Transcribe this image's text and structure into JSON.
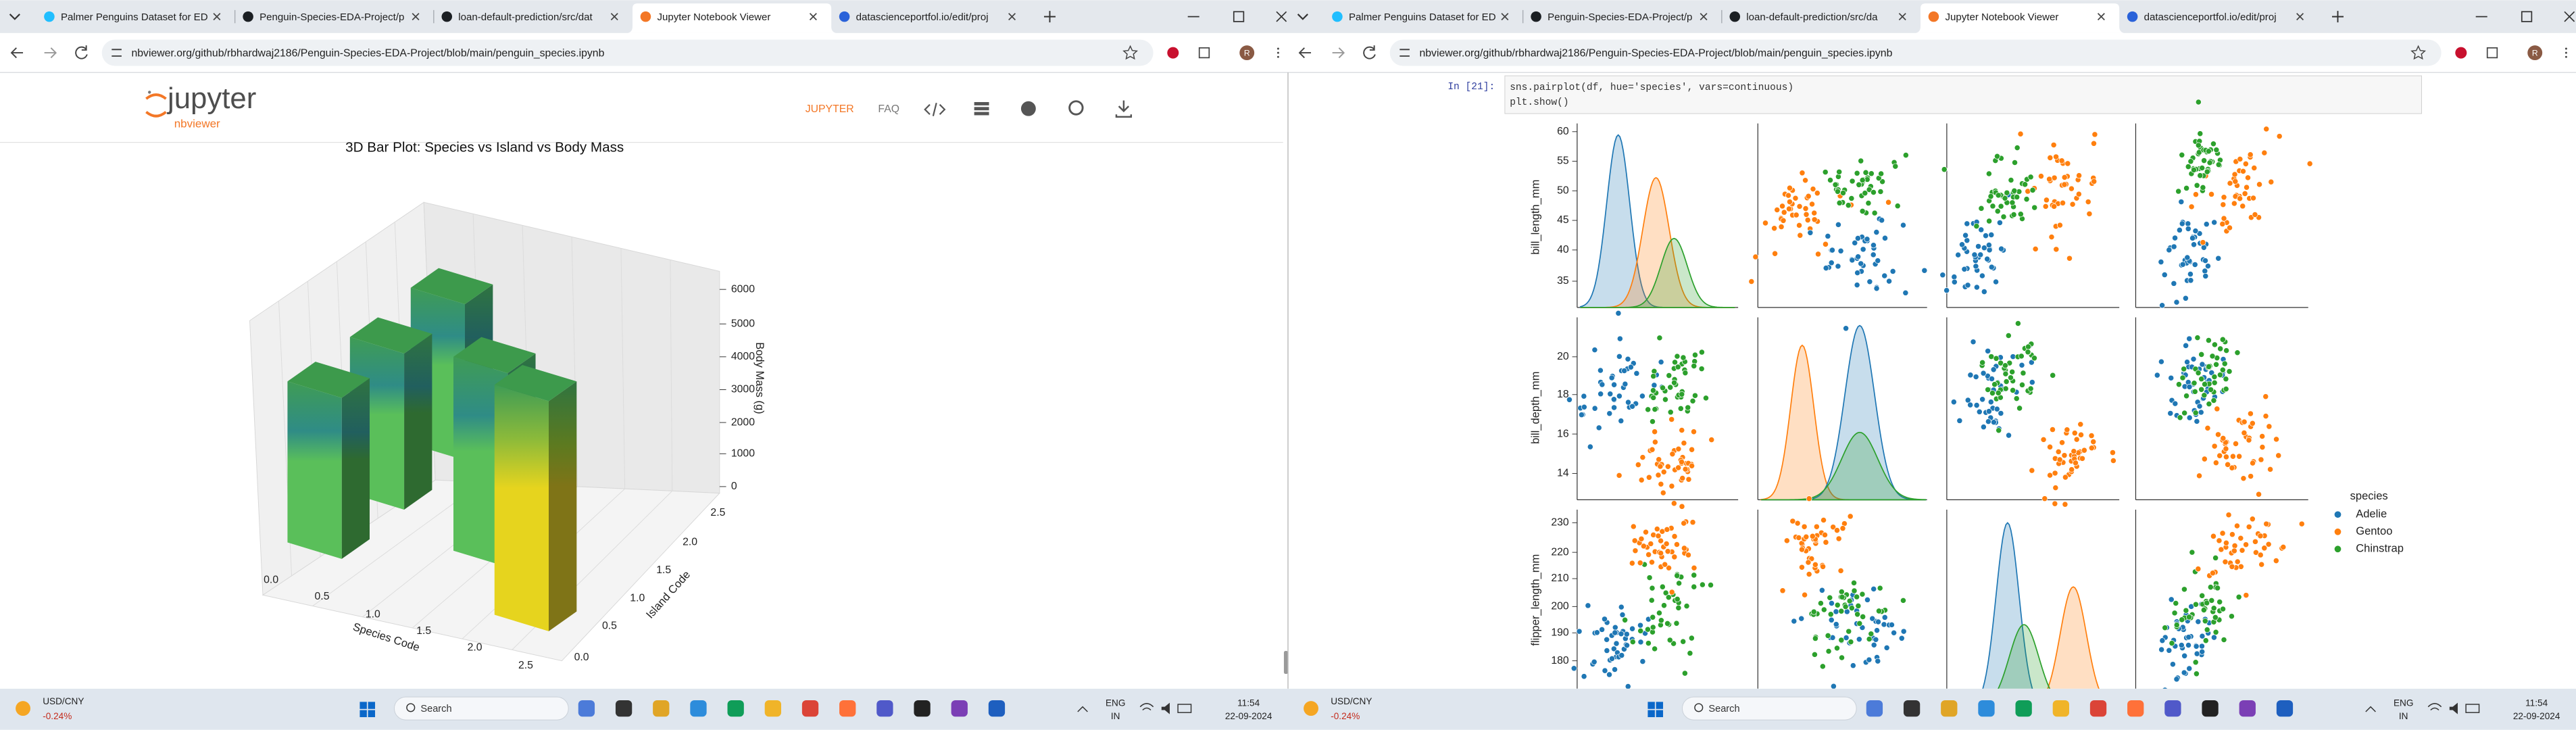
{
  "windows": [
    {
      "tabs": [
        "Palmer Penguins Dataset for ED",
        "Penguin-Species-EDA-Project/p",
        "loan-default-prediction/src/dat",
        "Jupyter Notebook Viewer",
        "datascienceportfol.io/edit/proj"
      ],
      "url": "nbviewer.org/github/rbhardwaj2186/Penguin-Species-EDA-Project/blob/main/penguin_species.ipynb",
      "profile": "R",
      "taskbar": {
        "ticker": "USD/CNY",
        "change": "-0.24%",
        "search": "Search",
        "language": "ENG",
        "region": "IN",
        "time": "11:54",
        "date": "22-09-2024"
      }
    },
    {
      "tabs": [
        "Palmer Penguins Dataset for ED",
        "Penguin-Species-EDA-Project/p",
        "loan-default-prediction/src/da",
        "Jupyter Notebook Viewer",
        "datascienceportfol.io/edit/proj"
      ],
      "url": "nbviewer.org/github/rbhardwaj2186/Penguin-Species-EDA-Project/blob/main/penguin_species.ipynb",
      "profile": "R",
      "taskbar": {
        "ticker": "USD/CNY",
        "change": "-0.24%",
        "search": "Search",
        "language": "ENG",
        "region": "IN",
        "time": "11:54",
        "date": "22-09-2024"
      }
    }
  ],
  "nbviewer": {
    "logo": "jupyter",
    "sublogo": "nbviewer",
    "nav": [
      "JUPYTER",
      "FAQ"
    ]
  },
  "bar3d": {
    "title": "3D Bar Plot: Species vs Island vs Body Mass",
    "x_label": "Species Code",
    "y_label": "Island Code",
    "z_label": "Body Mass (g)",
    "x_ticks": [
      "0.0",
      "0.5",
      "1.0",
      "1.5",
      "2.0",
      "2.5"
    ],
    "y_ticks": [
      "0.0",
      "0.5",
      "1.0",
      "1.5",
      "2.0",
      "2.5"
    ],
    "z_ticks": [
      "0",
      "1000",
      "2000",
      "3000",
      "4000",
      "5000",
      "6000"
    ]
  },
  "cell": {
    "prompt": "In [21]:",
    "code": [
      "sns.pairplot(df, hue='species', vars=continuous)",
      "plt.show()"
    ]
  },
  "pairplot": {
    "y_labels": [
      "bill_length_mm",
      "bill_depth_mm",
      "flipper_length_mm"
    ],
    "y_ticks": [
      [
        "60",
        "55",
        "50",
        "45",
        "40",
        "35"
      ],
      [
        "20",
        "18",
        "16",
        "14"
      ],
      [
        "230",
        "220",
        "210",
        "200",
        "190",
        "180"
      ]
    ],
    "legend_title": "species",
    "legend": [
      {
        "name": "Adelie",
        "color": "#1f77b4"
      },
      {
        "name": "Gentoo",
        "color": "#ff7f0e"
      },
      {
        "name": "Chinstrap",
        "color": "#2ca02c"
      }
    ]
  }
}
